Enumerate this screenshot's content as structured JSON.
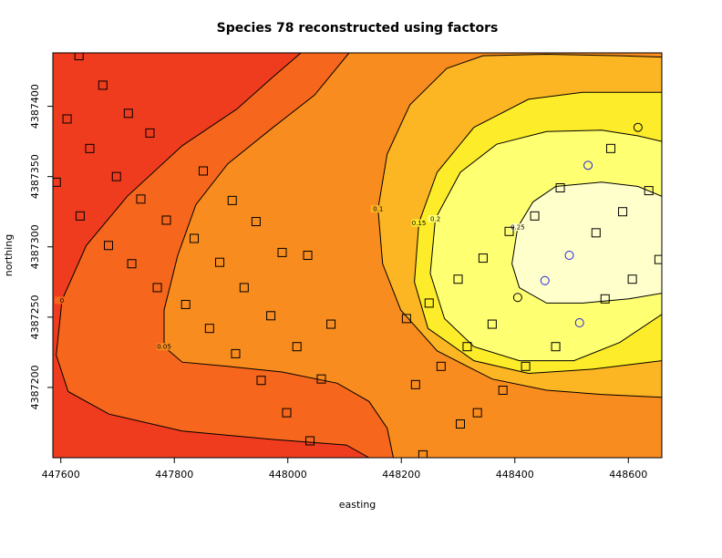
{
  "chart_data": {
    "type": "contour",
    "title": "Species 78 reconstructed using factors",
    "x_label": "easting",
    "y_label": "northing",
    "xlim": [
      447586,
      448659
    ],
    "ylim": [
      4387150,
      4387438
    ],
    "xticks": [
      447600,
      447800,
      448000,
      448200,
      448400,
      448600
    ],
    "yticks": [
      4387200,
      4387250,
      4387300,
      4387350,
      4387400
    ],
    "background": "#f03c1e",
    "contours": [
      {
        "level": 0,
        "fill": "#f6661c",
        "x": [
          448143,
          448103,
          447974,
          447814,
          447685,
          447613,
          447592,
          447602,
          447645,
          447717,
          447814,
          447910,
          447974,
          448023
        ],
        "y": [
          4387150,
          4387159,
          4387163,
          4387169,
          4387181,
          4387197,
          4387223,
          4387262,
          4387301,
          4387336,
          4387372,
          4387398,
          4387421,
          4387438
        ]
      },
      {
        "level": 0.05,
        "fill": "#f98c1e",
        "x": [
          448186,
          448175,
          448143,
          448087,
          447990,
          447894,
          447814,
          447782,
          447782,
          447806,
          447838,
          447894,
          447974,
          448047,
          448108
        ],
        "y": [
          4387150,
          4387171,
          4387190,
          4387203,
          4387211,
          4387215,
          4387218,
          4387229,
          4387255,
          4387294,
          4387330,
          4387359,
          4387385,
          4387408,
          4387438
        ]
      },
      {
        "level": 0.1,
        "fill": "#fcb523",
        "x": [
          448659,
          448553,
          448456,
          448360,
          448263,
          448199,
          448167,
          448159,
          448175,
          448215,
          448280,
          448344,
          448456,
          448585,
          448659
        ],
        "y": [
          4387193,
          4387195,
          4387198,
          4387206,
          4387226,
          4387255,
          4387288,
          4387327,
          4387366,
          4387401,
          4387427,
          4387436,
          4387437,
          4387436,
          4387435
        ]
      },
      {
        "level": 0.15,
        "fill": "#fdec2a",
        "x": [
          448659,
          448537,
          448424,
          448328,
          448247,
          448223,
          448231,
          448263,
          448328,
          448424,
          448520,
          448617,
          448659
        ],
        "y": [
          4387219,
          4387213,
          4387210,
          4387219,
          4387242,
          4387275,
          4387317,
          4387353,
          4387385,
          4387405,
          4387410,
          4387410,
          4387410
        ]
      },
      {
        "level": 0.2,
        "fill": "#ffff72",
        "x": [
          448659,
          448585,
          448504,
          448408,
          448328,
          448276,
          448251,
          448260,
          448304,
          448368,
          448456,
          448553,
          448617,
          448659
        ],
        "y": [
          4387252,
          4387232,
          4387219,
          4387219,
          4387229,
          4387249,
          4387281,
          4387320,
          4387353,
          4387373,
          4387382,
          4387383,
          4387379,
          4387375
        ]
      },
      {
        "level": 0.25,
        "fill": "#ffffcc",
        "x": [
          448659,
          448601,
          448520,
          448456,
          448408,
          448395,
          448405,
          448432,
          448472,
          448553,
          448617,
          448659
        ],
        "y": [
          4387267,
          4387263,
          4387260,
          4387260,
          4387271,
          4387288,
          4387314,
          4387332,
          4387343,
          4387346,
          4387343,
          4387336
        ]
      }
    ],
    "series": [
      {
        "marker": "square",
        "color": "#000000",
        "x": [
          447632,
          447674,
          447611,
          447719,
          447651,
          447757,
          447698,
          447592,
          447851,
          447741,
          447634,
          447786,
          447902,
          447944,
          447684,
          447835,
          447725,
          447990,
          447880,
          447770,
          447923,
          447820,
          448035,
          447970,
          448076,
          447862,
          447908,
          448016,
          447953,
          448059,
          447998,
          448039,
          448209,
          448249,
          448300,
          448344,
          448360,
          448316,
          448270,
          448225,
          448238,
          448304,
          448334,
          448379,
          448419,
          448472,
          448390,
          448435,
          448480,
          448543,
          448569,
          448590,
          448636,
          448607,
          448559,
          448654
        ],
        "y": [
          4387436,
          4387415,
          4387391,
          4387395,
          4387370,
          4387381,
          4387350,
          4387346,
          4387354,
          4387334,
          4387322,
          4387319,
          4387333,
          4387318,
          4387301,
          4387306,
          4387288,
          4387296,
          4387289,
          4387271,
          4387271,
          4387259,
          4387294,
          4387251,
          4387245,
          4387242,
          4387224,
          4387229,
          4387205,
          4387206,
          4387182,
          4387162,
          4387249,
          4387260,
          4387277,
          4387292,
          4387245,
          4387229,
          4387215,
          4387202,
          4387152,
          4387174,
          4387182,
          4387198,
          4387215,
          4387229,
          4387311,
          4387322,
          4387342,
          4387310,
          4387370,
          4387325,
          4387340,
          4387277,
          4387263,
          4387291
        ]
      },
      {
        "marker": "circle",
        "color": "#2323e0",
        "x": [
          448529,
          448496,
          448453,
          448514
        ],
        "y": [
          4387358,
          4387294,
          4387276,
          4387246
        ]
      },
      {
        "marker": "circle",
        "color": "#000000",
        "x": [
          448617,
          448405
        ],
        "y": [
          4387385,
          4387264
        ]
      }
    ]
  }
}
